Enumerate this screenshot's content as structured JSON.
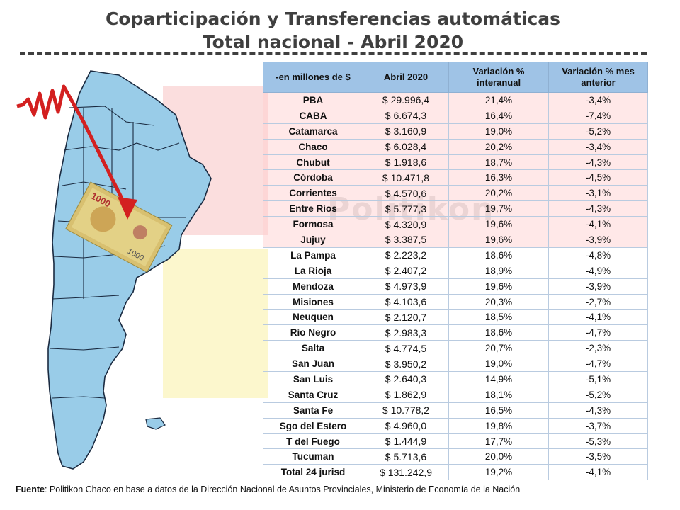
{
  "title": {
    "line1": "Coparticipación y Transferencias automáticas",
    "line2": "Total nacional - Abril 2020"
  },
  "watermark": "Politikon",
  "banknote_text": "1000",
  "table": {
    "headers": [
      "-en millones de $",
      "Abril 2020",
      "Variación % interanual",
      "Variación % mes anterior"
    ],
    "rows": [
      {
        "name": "PBA",
        "amount": "$ 29.996,4",
        "yoy": "21,4%",
        "mom": "-3,4%"
      },
      {
        "name": "CABA",
        "amount": "$ 6.674,3",
        "yoy": "16,4%",
        "mom": "-7,4%"
      },
      {
        "name": "Catamarca",
        "amount": "$ 3.160,9",
        "yoy": "19,0%",
        "mom": "-5,2%"
      },
      {
        "name": "Chaco",
        "amount": "$ 6.028,4",
        "yoy": "20,2%",
        "mom": "-3,4%"
      },
      {
        "name": "Chubut",
        "amount": "$ 1.918,6",
        "yoy": "18,7%",
        "mom": "-4,3%"
      },
      {
        "name": "Córdoba",
        "amount": "$ 10.471,8",
        "yoy": "16,3%",
        "mom": "-4,5%"
      },
      {
        "name": "Corrientes",
        "amount": "$ 4.570,6",
        "yoy": "20,2%",
        "mom": "-3,1%"
      },
      {
        "name": "Entre Ríos",
        "amount": "$ 5.777,3",
        "yoy": "19,7%",
        "mom": "-4,3%"
      },
      {
        "name": "Formosa",
        "amount": "$ 4.320,9",
        "yoy": "19,6%",
        "mom": "-4,1%"
      },
      {
        "name": "Jujuy",
        "amount": "$ 3.387,5",
        "yoy": "19,6%",
        "mom": "-3,9%"
      },
      {
        "name": "La Pampa",
        "amount": "$ 2.223,2",
        "yoy": "18,6%",
        "mom": "-4,8%"
      },
      {
        "name": "La Rioja",
        "amount": "$ 2.407,2",
        "yoy": "18,9%",
        "mom": "-4,9%"
      },
      {
        "name": "Mendoza",
        "amount": "$ 4.973,9",
        "yoy": "19,6%",
        "mom": "-3,9%"
      },
      {
        "name": "Misiones",
        "amount": "$ 4.103,6",
        "yoy": "20,3%",
        "mom": "-2,7%"
      },
      {
        "name": "Neuquen",
        "amount": "$ 2.120,7",
        "yoy": "18,5%",
        "mom": "-4,1%"
      },
      {
        "name": "Río Negro",
        "amount": "$ 2.983,3",
        "yoy": "18,6%",
        "mom": "-4,7%"
      },
      {
        "name": "Salta",
        "amount": "$ 4.774,5",
        "yoy": "20,7%",
        "mom": "-2,3%"
      },
      {
        "name": "San Juan",
        "amount": "$ 3.950,2",
        "yoy": "19,0%",
        "mom": "-4,7%"
      },
      {
        "name": "San Luis",
        "amount": "$ 2.640,3",
        "yoy": "14,9%",
        "mom": "-5,1%"
      },
      {
        "name": "Santa Cruz",
        "amount": "$ 1.862,9",
        "yoy": "18,1%",
        "mom": "-5,2%"
      },
      {
        "name": "Santa Fe",
        "amount": "$ 10.778,2",
        "yoy": "16,5%",
        "mom": "-4,3%"
      },
      {
        "name": "Sgo del Estero",
        "amount": "$ 4.960,0",
        "yoy": "19,8%",
        "mom": "-3,7%"
      },
      {
        "name": "T del Fuego",
        "amount": "$ 1.444,9",
        "yoy": "17,7%",
        "mom": "-5,3%"
      },
      {
        "name": "Tucuman",
        "amount": "$ 5.713,6",
        "yoy": "20,0%",
        "mom": "-3,5%"
      },
      {
        "name": "Total 24 jurisd",
        "amount": "$ 131.242,9",
        "yoy": "19,2%",
        "mom": "-4,1%"
      }
    ]
  },
  "source": {
    "label": "Fuente",
    "text": ": Politikon Chaco en base a datos de la Dirección Nacional de Asuntos Provinciales, Ministerio de Economía de la Nación"
  }
}
